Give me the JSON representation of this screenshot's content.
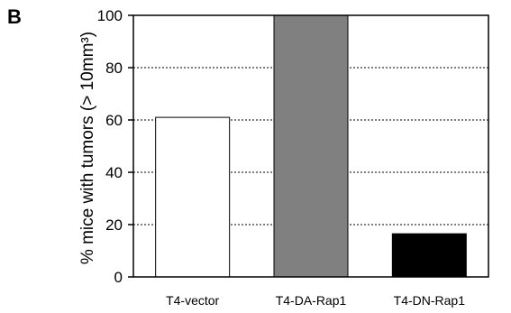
{
  "panel_label": "B",
  "chart_data": {
    "type": "bar",
    "title": "",
    "xlabel": "",
    "ylabel": "% mice with tumors (> 10mm³)",
    "ylim": [
      0,
      100
    ],
    "yticks": [
      0,
      20,
      40,
      60,
      80,
      100
    ],
    "grid": "horizontal dashed",
    "categories": [
      "T4-vector",
      "T4-DA-Rap1",
      "T4-DN-Rap1"
    ],
    "values": [
      61,
      100,
      16.5
    ],
    "bar_colors": [
      "#ffffff",
      "#808080",
      "#000000"
    ]
  }
}
